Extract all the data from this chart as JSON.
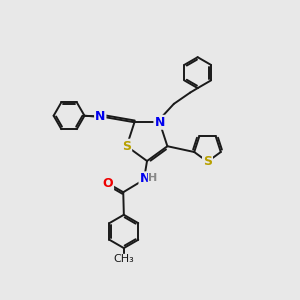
{
  "bg_color": "#e8e8e8",
  "bond_color": "#1a1a1a",
  "bond_width": 1.4,
  "dbo": 0.06,
  "atom_colors": {
    "N_blue": "#0000ee",
    "S_yellow": "#b8a000",
    "O_red": "#ee0000",
    "H_gray": "#888888",
    "C": "#1a1a1a"
  },
  "figsize": [
    3.0,
    3.0
  ],
  "dpi": 100,
  "xlim": [
    0,
    10
  ],
  "ylim": [
    0,
    10
  ]
}
